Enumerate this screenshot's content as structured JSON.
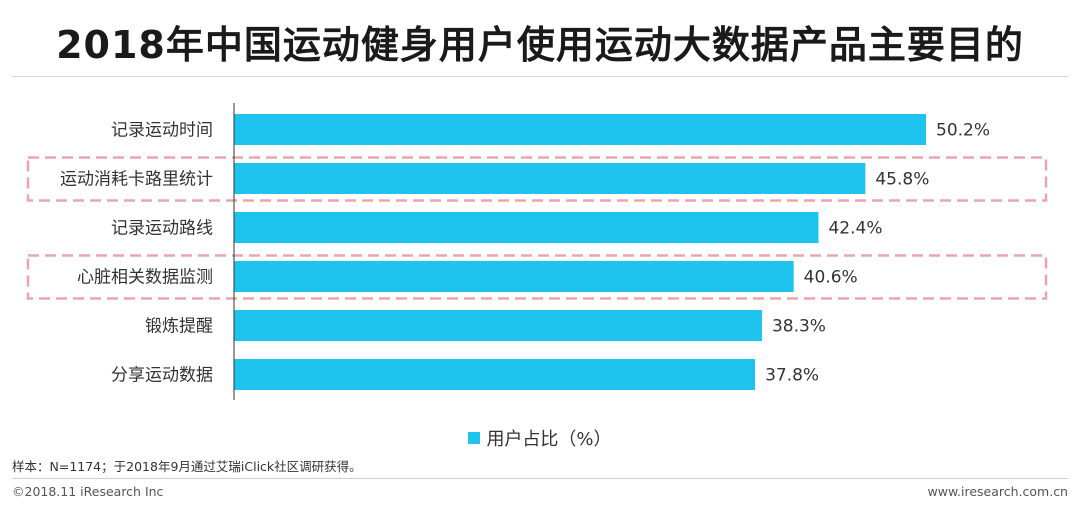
{
  "title": "2018年中国运动健身用户使用运动大数据产品主要目的",
  "chart_data": {
    "type": "bar",
    "orientation": "horizontal",
    "categories": [
      "记录运动时间",
      "运动消耗卡路里统计",
      "记录运动路线",
      "心脏相关数据监测",
      "锻炼提醒",
      "分享运动数据"
    ],
    "series": [
      {
        "name": "用户占比（%）",
        "values": [
          50.2,
          45.8,
          42.4,
          40.6,
          38.3,
          37.8
        ],
        "labels": [
          "50.2%",
          "45.8%",
          "42.4%",
          "40.6%",
          "38.3%",
          "37.8%"
        ]
      }
    ],
    "xlim": [
      0,
      50.2
    ],
    "highlighted_categories": [
      "运动消耗卡路里统计",
      "心脏相关数据监测"
    ],
    "grid": false,
    "legend_position": "bottom-center",
    "bar_color": "#1ec3ee",
    "highlight_color": "#e8a7ae"
  },
  "legend": {
    "label": "用户占比（%）",
    "color": "#1ec3ee"
  },
  "footnote": "样本：N=1174；于2018年9月通过艾瑞iClick社区调研获得。",
  "footer": {
    "copyright": "©2018.11 iResearch Inc",
    "website": "www.iresearch.com.cn"
  }
}
